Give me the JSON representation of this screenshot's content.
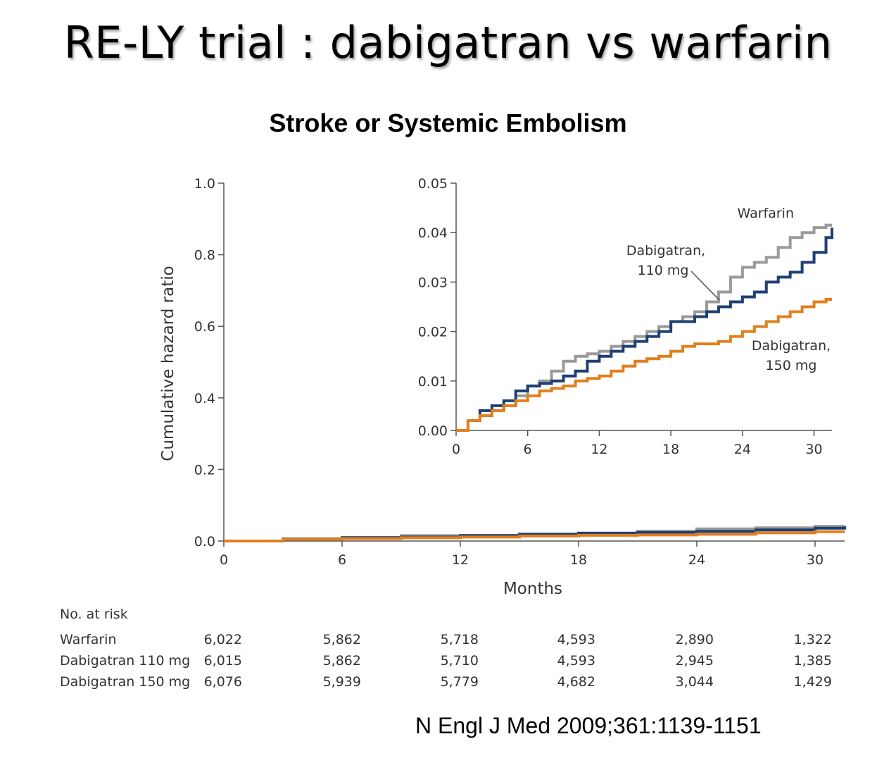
{
  "slide": {
    "title": "RE-LY trial : dabigatran vs warfarin",
    "subtitle": "Stroke or Systemic Embolism",
    "citation": "N Engl J Med 2009;361:1139-1151"
  },
  "chart_data": [
    {
      "type": "line",
      "panel": "main",
      "xlabel": "Months",
      "ylabel": "Cumulative hazard ratio",
      "xlim": [
        0,
        31.5
      ],
      "ylim": [
        0,
        1.0
      ],
      "x_ticks": [
        "0",
        "6",
        "12",
        "18",
        "24",
        "30"
      ],
      "y_ticks": [
        "0.0",
        "0.2",
        "0.4",
        "0.6",
        "0.8",
        "1.0"
      ],
      "x": [
        0,
        3,
        6,
        9,
        12,
        15,
        18,
        21,
        24,
        27,
        30,
        31.5
      ],
      "series": [
        {
          "name": "Warfarin",
          "color": "#9a9a9a",
          "values": [
            0.0,
            0.006,
            0.01,
            0.015,
            0.016,
            0.019,
            0.022,
            0.027,
            0.034,
            0.037,
            0.041,
            0.041
          ]
        },
        {
          "name": "Dabigatran, 110 mg",
          "color": "#1f3f73",
          "values": [
            0.0,
            0.006,
            0.009,
            0.011,
            0.015,
            0.019,
            0.022,
            0.024,
            0.027,
            0.031,
            0.036,
            0.041
          ]
        },
        {
          "name": "Dabigatran, 150 mg",
          "color": "#e0801f",
          "values": [
            0.0,
            0.005,
            0.007,
            0.009,
            0.011,
            0.014,
            0.016,
            0.017,
            0.019,
            0.023,
            0.026,
            0.026
          ]
        }
      ]
    },
    {
      "type": "line",
      "panel": "inset",
      "xlim": [
        0,
        31.5
      ],
      "ylim": [
        0,
        0.05
      ],
      "x_ticks": [
        "0",
        "6",
        "12",
        "18",
        "24",
        "30"
      ],
      "y_ticks": [
        "0.00",
        "0.01",
        "0.02",
        "0.03",
        "0.04",
        "0.05"
      ],
      "x": [
        0,
        1,
        2,
        3,
        4,
        5,
        6,
        7,
        8,
        9,
        10,
        11,
        12,
        13,
        14,
        15,
        16,
        17,
        18,
        19,
        20,
        21,
        22,
        23,
        24,
        25,
        26,
        27,
        28,
        29,
        30,
        31,
        31.5
      ],
      "series": [
        {
          "name": "Warfarin",
          "color": "#9a9a9a",
          "values": [
            0.0,
            0.002,
            0.003,
            0.004,
            0.005,
            0.007,
            0.009,
            0.01,
            0.012,
            0.014,
            0.015,
            0.0155,
            0.016,
            0.017,
            0.018,
            0.019,
            0.02,
            0.021,
            0.022,
            0.023,
            0.024,
            0.026,
            0.028,
            0.031,
            0.033,
            0.034,
            0.035,
            0.037,
            0.039,
            0.04,
            0.041,
            0.0415,
            0.0415
          ]
        },
        {
          "name": "Dabigatran, 110 mg",
          "color": "#1f3f73",
          "values": [
            0.0,
            0.002,
            0.004,
            0.005,
            0.006,
            0.008,
            0.009,
            0.0095,
            0.01,
            0.011,
            0.012,
            0.014,
            0.015,
            0.016,
            0.017,
            0.018,
            0.019,
            0.02,
            0.022,
            0.022,
            0.023,
            0.024,
            0.025,
            0.026,
            0.027,
            0.028,
            0.03,
            0.031,
            0.032,
            0.034,
            0.036,
            0.039,
            0.041
          ]
        },
        {
          "name": "Dabigatran, 150 mg",
          "color": "#e0801f",
          "values": [
            0.0,
            0.002,
            0.003,
            0.004,
            0.005,
            0.006,
            0.007,
            0.008,
            0.0085,
            0.009,
            0.01,
            0.0105,
            0.011,
            0.012,
            0.013,
            0.014,
            0.0145,
            0.015,
            0.016,
            0.017,
            0.0175,
            0.0175,
            0.018,
            0.019,
            0.02,
            0.021,
            0.022,
            0.023,
            0.024,
            0.025,
            0.026,
            0.0265,
            0.0265
          ]
        }
      ],
      "annotations": [
        "Warfarin",
        "Dabigatran,",
        "110 mg",
        "Dabigatran,",
        "150 mg"
      ]
    }
  ],
  "risk_table": {
    "header": "No. at risk",
    "columns": [
      "0",
      "6",
      "12",
      "18",
      "24",
      "30"
    ],
    "rows": [
      {
        "label": "Warfarin",
        "values": [
          "6,022",
          "5,862",
          "5,718",
          "4,593",
          "2,890",
          "1,322"
        ]
      },
      {
        "label": "Dabigatran 110 mg",
        "values": [
          "6,015",
          "5,862",
          "5,710",
          "4,593",
          "2,945",
          "1,385"
        ]
      },
      {
        "label": "Dabigatran 150 mg",
        "values": [
          "6,076",
          "5,939",
          "5,779",
          "4,682",
          "3,044",
          "1,429"
        ]
      }
    ]
  }
}
